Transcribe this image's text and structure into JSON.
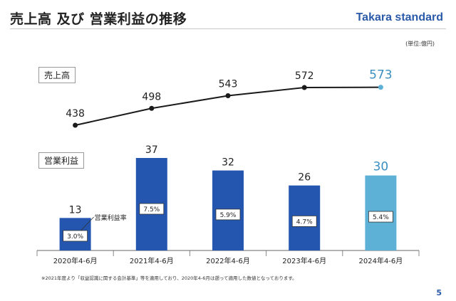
{
  "header": {
    "title": "売上高 及び 営業利益の推移",
    "logo": "Takara standard"
  },
  "unit": "(単位:億円)",
  "labels": {
    "sales": "売上高",
    "op_profit": "営業利益",
    "margin_callout": "営業利益率"
  },
  "footnote": "※2021年度より「収益認識に関する会計基準」等を適用しており、2020年4-6月は遡って適用した数値となっております。",
  "page_number": "5",
  "colors": {
    "bar": "#2456b0",
    "bar_highlight": "#5eb1d6",
    "line": "#1a1a1a",
    "highlight_text": "#3a8fbf"
  },
  "chart_data": {
    "type": "bar+line",
    "categories": [
      "2020年4-6月",
      "2021年4-6月",
      "2022年4-6月",
      "2023年4-6月",
      "2024年4-6月"
    ],
    "series": [
      {
        "name": "売上高",
        "type": "line",
        "values": [
          438,
          498,
          543,
          572,
          573
        ],
        "labels": [
          "438",
          "498",
          "543",
          "572",
          "573"
        ]
      },
      {
        "name": "営業利益",
        "type": "bar",
        "values": [
          13,
          37,
          32,
          26,
          30
        ],
        "labels": [
          "13",
          "37",
          "32",
          "26",
          "30"
        ]
      },
      {
        "name": "営業利益率",
        "type": "annotation",
        "values": [
          3.0,
          7.5,
          5.9,
          4.7,
          5.4
        ],
        "labels": [
          "3.0%",
          "7.5%",
          "5.9%",
          "4.7%",
          "5.4%"
        ]
      }
    ],
    "highlight_index": 4,
    "ylabel": "億円"
  }
}
